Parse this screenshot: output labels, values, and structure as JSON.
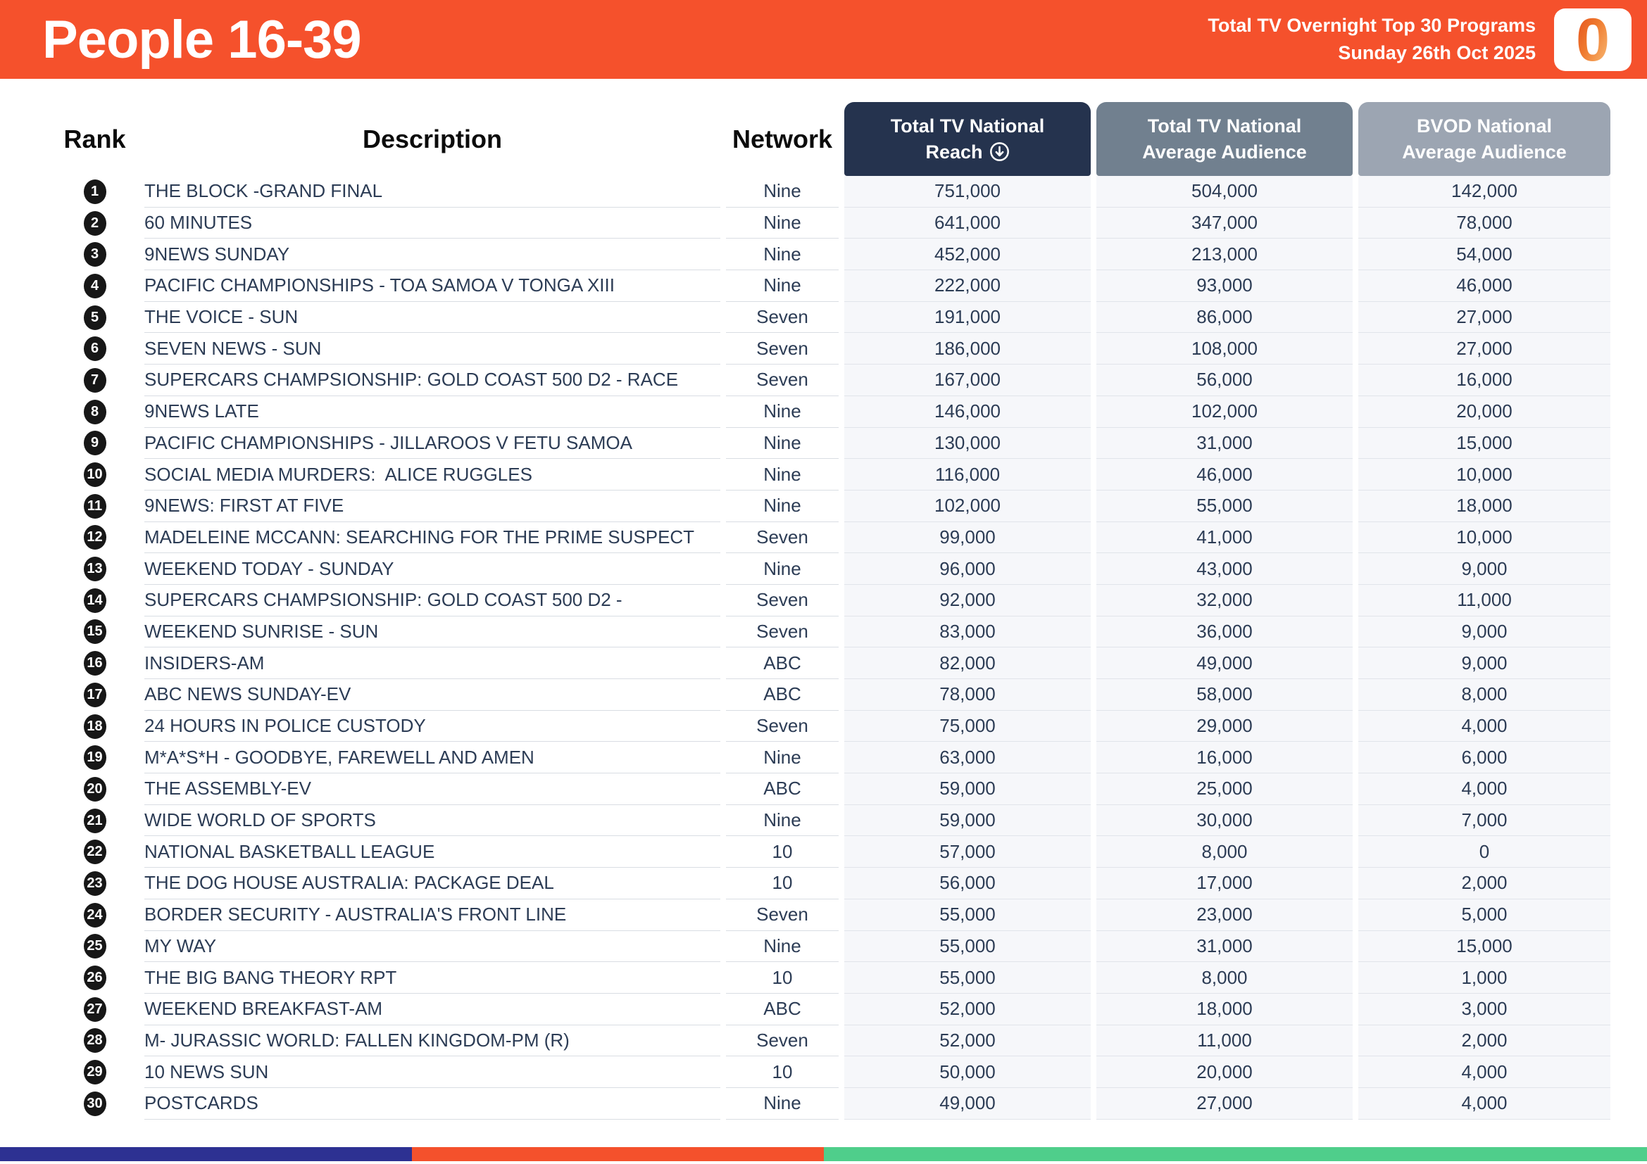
{
  "header": {
    "title": "People 16-39",
    "subtitle_line1": "Total TV Overnight Top 30 Programs",
    "subtitle_line2": "Sunday 26th Oct 2025",
    "logo_text": "0"
  },
  "table": {
    "col_rank": "Rank",
    "col_description": "Description",
    "col_network": "Network",
    "pills": [
      {
        "line1": "Total TV National",
        "line2": "Reach",
        "sorted": "descending"
      },
      {
        "line1": "Total TV National",
        "line2": "Average Audience"
      },
      {
        "line1": "BVOD National",
        "line2": "Average Audience"
      }
    ]
  },
  "chart_data": {
    "type": "table",
    "title": "People 16-39 — Total TV Overnight Top 30 Programs — Sunday 26th Oct 2025",
    "columns": [
      "Rank",
      "Description",
      "Network",
      "Total TV National Reach",
      "Total TV National Average Audience",
      "BVOD National Average Audience"
    ],
    "sort": {
      "column": "Total TV National Reach",
      "direction": "desc"
    },
    "rows": [
      [
        1,
        "THE BLOCK -GRAND FINAL",
        "Nine",
        "751,000",
        "504,000",
        "142,000"
      ],
      [
        2,
        "60 MINUTES",
        "Nine",
        "641,000",
        "347,000",
        "78,000"
      ],
      [
        3,
        "9NEWS SUNDAY",
        "Nine",
        "452,000",
        "213,000",
        "54,000"
      ],
      [
        4,
        "PACIFIC CHAMPIONSHIPS - TOA SAMOA V TONGA XIII",
        "Nine",
        "222,000",
        "93,000",
        "46,000"
      ],
      [
        5,
        "THE VOICE - SUN",
        "Seven",
        "191,000",
        "86,000",
        "27,000"
      ],
      [
        6,
        "SEVEN NEWS - SUN",
        "Seven",
        "186,000",
        "108,000",
        "27,000"
      ],
      [
        7,
        "SUPERCARS CHAMPSIONSHIP: GOLD COAST 500 D2 - RACE",
        "Seven",
        "167,000",
        "56,000",
        "16,000"
      ],
      [
        8,
        "9NEWS LATE",
        "Nine",
        "146,000",
        "102,000",
        "20,000"
      ],
      [
        9,
        "PACIFIC CHAMPIONSHIPS - JILLAROOS V FETU SAMOA",
        "Nine",
        "130,000",
        "31,000",
        "15,000"
      ],
      [
        10,
        "SOCIAL MEDIA MURDERS:  ALICE RUGGLES",
        "Nine",
        "116,000",
        "46,000",
        "10,000"
      ],
      [
        11,
        "9NEWS: FIRST AT FIVE",
        "Nine",
        "102,000",
        "55,000",
        "18,000"
      ],
      [
        12,
        "MADELEINE MCCANN: SEARCHING FOR THE PRIME SUSPECT",
        "Seven",
        "99,000",
        "41,000",
        "10,000"
      ],
      [
        13,
        "WEEKEND TODAY - SUNDAY",
        "Nine",
        "96,000",
        "43,000",
        "9,000"
      ],
      [
        14,
        "SUPERCARS CHAMPSIONSHIP: GOLD COAST 500 D2 -",
        "Seven",
        "92,000",
        "32,000",
        "11,000"
      ],
      [
        15,
        "WEEKEND SUNRISE - SUN",
        "Seven",
        "83,000",
        "36,000",
        "9,000"
      ],
      [
        16,
        "INSIDERS-AM",
        "ABC",
        "82,000",
        "49,000",
        "9,000"
      ],
      [
        17,
        "ABC NEWS SUNDAY-EV",
        "ABC",
        "78,000",
        "58,000",
        "8,000"
      ],
      [
        18,
        "24 HOURS IN POLICE CUSTODY",
        "Seven",
        "75,000",
        "29,000",
        "4,000"
      ],
      [
        19,
        "M*A*S*H - GOODBYE, FAREWELL AND AMEN",
        "Nine",
        "63,000",
        "16,000",
        "6,000"
      ],
      [
        20,
        "THE ASSEMBLY-EV",
        "ABC",
        "59,000",
        "25,000",
        "4,000"
      ],
      [
        21,
        "WIDE WORLD OF SPORTS",
        "Nine",
        "59,000",
        "30,000",
        "7,000"
      ],
      [
        22,
        "NATIONAL BASKETBALL LEAGUE",
        "10",
        "57,000",
        "8,000",
        "0"
      ],
      [
        23,
        "THE DOG HOUSE AUSTRALIA: PACKAGE DEAL",
        "10",
        "56,000",
        "17,000",
        "2,000"
      ],
      [
        24,
        "BORDER SECURITY - AUSTRALIA'S FRONT LINE",
        "Seven",
        "55,000",
        "23,000",
        "5,000"
      ],
      [
        25,
        "MY WAY",
        "Nine",
        "55,000",
        "31,000",
        "15,000"
      ],
      [
        26,
        "THE BIG BANG THEORY RPT",
        "10",
        "55,000",
        "8,000",
        "1,000"
      ],
      [
        27,
        "WEEKEND BREAKFAST-AM",
        "ABC",
        "52,000",
        "18,000",
        "3,000"
      ],
      [
        28,
        "M- JURASSIC WORLD: FALLEN KINGDOM-PM (R)",
        "Seven",
        "52,000",
        "11,000",
        "2,000"
      ],
      [
        29,
        "10 NEWS SUN",
        "10",
        "50,000",
        "20,000",
        "4,000"
      ],
      [
        30,
        "POSTCARDS",
        "Nine",
        "49,000",
        "27,000",
        "4,000"
      ]
    ]
  },
  "colors": {
    "banner_orange": "#F5512C",
    "pill_navy": "#25334E",
    "pill_slate": "#71808F",
    "pill_gray": "#9CA5B2",
    "row_text": "#2C3C55",
    "numeric_cell_bg": "#F6F7FA",
    "footer_indigo": "#2D3192",
    "footer_orange": "#F4512C",
    "footer_green": "#4FCE8B"
  }
}
